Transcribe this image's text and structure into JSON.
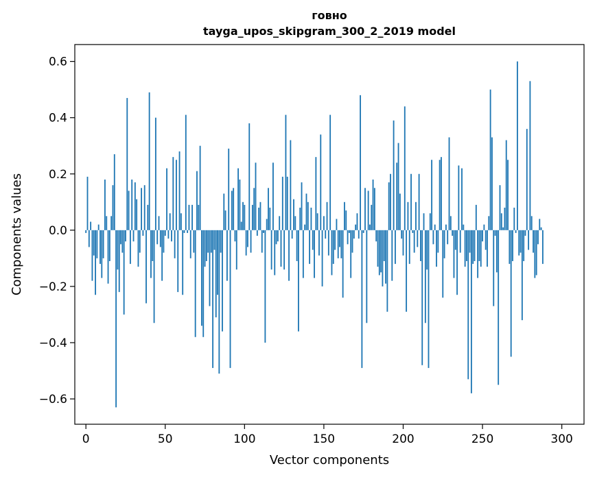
{
  "chart_data": {
    "type": "bar",
    "title": "говно",
    "subtitle": "tayga_upos_skipgram_300_2_2019 model",
    "xlabel": "Vector components",
    "ylabel": "Components values",
    "xlim": [
      -7,
      314
    ],
    "ylim": [
      -0.69,
      0.66
    ],
    "x_ticks": [
      0,
      50,
      100,
      150,
      200,
      250,
      300
    ],
    "x_tick_labels": [
      "0",
      "50",
      "100",
      "150",
      "200",
      "250",
      "300"
    ],
    "y_ticks": [
      -0.6,
      -0.4,
      -0.2,
      0.0,
      0.2,
      0.4,
      0.6
    ],
    "y_tick_labels": [
      "−0.6",
      "−0.4",
      "−0.2",
      "0.0",
      "0.2",
      "0.4",
      "0.6"
    ],
    "grid": false,
    "bar_color": "#1f77b4",
    "values": [
      -0.01,
      0.19,
      -0.06,
      0.03,
      -0.18,
      -0.09,
      -0.23,
      -0.1,
      0.02,
      -0.12,
      -0.17,
      -0.1,
      0.18,
      0.05,
      -0.19,
      -0.11,
      0.05,
      0.16,
      0.27,
      -0.63,
      -0.14,
      -0.22,
      -0.05,
      -0.08,
      -0.3,
      -0.04,
      0.47,
      0.14,
      -0.12,
      0.18,
      -0.04,
      0.17,
      0.11,
      -0.13,
      -0.08,
      0.15,
      -0.02,
      0.16,
      -0.26,
      0.09,
      0.49,
      -0.17,
      -0.11,
      -0.33,
      0.4,
      -0.05,
      0.05,
      -0.06,
      -0.18,
      -0.08,
      -0.02,
      0.22,
      -0.03,
      0.06,
      -0.04,
      0.26,
      -0.1,
      0.25,
      -0.22,
      0.28,
      0.06,
      -0.23,
      -0.01,
      0.41,
      -0.01,
      0.09,
      -0.1,
      0.09,
      -0.08,
      -0.38,
      0.21,
      0.09,
      0.3,
      -0.34,
      -0.38,
      -0.13,
      -0.11,
      -0.08,
      -0.27,
      -0.08,
      -0.49,
      -0.07,
      -0.31,
      -0.23,
      -0.51,
      -0.08,
      -0.36,
      0.13,
      0.07,
      -0.18,
      0.29,
      -0.49,
      0.14,
      0.15,
      -0.04,
      -0.14,
      0.22,
      0.18,
      0.03,
      0.1,
      0.09,
      -0.09,
      -0.06,
      0.38,
      -0.08,
      0.09,
      0.15,
      0.24,
      -0.02,
      0.08,
      0.1,
      -0.08,
      -0.01,
      -0.4,
      0.04,
      0.15,
      0.08,
      -0.14,
      0.24,
      -0.16,
      -0.05,
      -0.04,
      0.05,
      -0.13,
      0.19,
      -0.14,
      0.41,
      0.19,
      -0.18,
      0.32,
      -0.03,
      0.11,
      0.05,
      -0.11,
      -0.36,
      0.08,
      0.17,
      -0.17,
      0.02,
      0.13,
      0.1,
      -0.12,
      0.08,
      -0.07,
      -0.17,
      0.26,
      0.06,
      -0.09,
      0.34,
      -0.2,
      0.05,
      -0.03,
      0.1,
      -0.09,
      0.41,
      -0.16,
      -0.12,
      -0.07,
      0.04,
      -0.1,
      -0.06,
      -0.1,
      -0.24,
      0.1,
      0.07,
      -0.05,
      -0.01,
      -0.17,
      -0.08,
      -0.03,
      0.02,
      0.06,
      -0.03,
      0.48,
      -0.49,
      -0.01,
      0.15,
      -0.33,
      0.14,
      0.02,
      0.09,
      0.18,
      0.15,
      -0.04,
      -0.13,
      -0.16,
      -0.15,
      -0.2,
      -0.11,
      -0.19,
      -0.29,
      0.17,
      0.2,
      -0.18,
      0.39,
      -0.12,
      0.24,
      0.31,
      0.13,
      -0.03,
      -0.09,
      0.44,
      -0.29,
      0.1,
      -0.12,
      0.2,
      -0.01,
      -0.08,
      0.1,
      -0.06,
      0.2,
      -0.11,
      -0.48,
      0.06,
      -0.33,
      -0.14,
      -0.49,
      0.06,
      0.25,
      -0.05,
      0.02,
      -0.13,
      -0.08,
      0.25,
      0.26,
      -0.24,
      -0.1,
      0.02,
      -0.05,
      0.33,
      0.05,
      -0.02,
      -0.17,
      -0.07,
      -0.23,
      0.23,
      -0.08,
      0.22,
      0.02,
      -0.13,
      -0.11,
      -0.53,
      -0.08,
      -0.58,
      -0.12,
      -0.11,
      0.09,
      -0.17,
      -0.11,
      -0.13,
      -0.04,
      0.02,
      -0.07,
      -0.13,
      0.05,
      0.5,
      0.33,
      -0.27,
      -0.02,
      -0.15,
      -0.55,
      0.16,
      0.06,
      0.01,
      0.08,
      0.32,
      0.25,
      -0.12,
      -0.45,
      -0.11,
      0.08,
      -0.01,
      0.6,
      -0.09,
      -0.08,
      -0.32,
      -0.11,
      -0.02,
      0.36,
      -0.07,
      0.53,
      0.05,
      -0.08,
      -0.17,
      -0.16,
      -0.05,
      0.04,
      0.01,
      -0.12
    ]
  }
}
